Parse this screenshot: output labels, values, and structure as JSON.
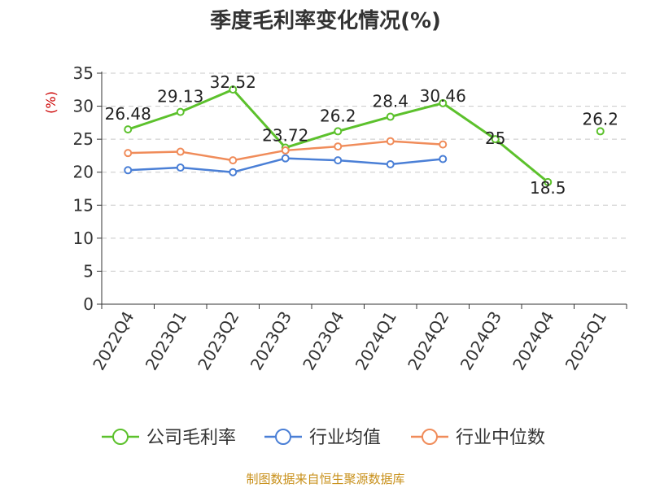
{
  "chart_data": {
    "type": "line",
    "title": "季度毛利率变化情况(%)",
    "ylabel": "(%)",
    "xlabel": "",
    "categories": [
      "2022Q4",
      "2023Q1",
      "2023Q2",
      "2023Q3",
      "2023Q4",
      "2024Q1",
      "2024Q2",
      "2024Q3",
      "2024Q4",
      "2025Q1"
    ],
    "ylim": [
      0,
      35
    ],
    "yticks": [
      0,
      5,
      10,
      15,
      20,
      25,
      30,
      35
    ],
    "grid": true,
    "legend_position": "bottom",
    "series": [
      {
        "name": "公司毛利率",
        "color": "#5cc12c",
        "values": [
          26.48,
          29.13,
          32.52,
          23.72,
          26.2,
          28.4,
          30.46,
          25,
          18.5,
          26.2
        ],
        "labels": [
          "26.48",
          "29.13",
          "32.52",
          "23.72",
          "26.2",
          "28.4",
          "30.46",
          "25",
          "18.5",
          "26.2"
        ],
        "breaks_after": [
          8
        ]
      },
      {
        "name": "行业均值",
        "color": "#4a7fd6",
        "values": [
          20.3,
          20.7,
          20.0,
          22.1,
          21.8,
          21.2,
          22.0,
          null,
          null,
          null
        ]
      },
      {
        "name": "行业中位数",
        "color": "#f08c5a",
        "values": [
          22.9,
          23.1,
          21.8,
          23.3,
          23.9,
          24.7,
          24.2,
          null,
          null,
          null
        ]
      }
    ]
  },
  "source": "制图数据来自恒生聚源数据库"
}
